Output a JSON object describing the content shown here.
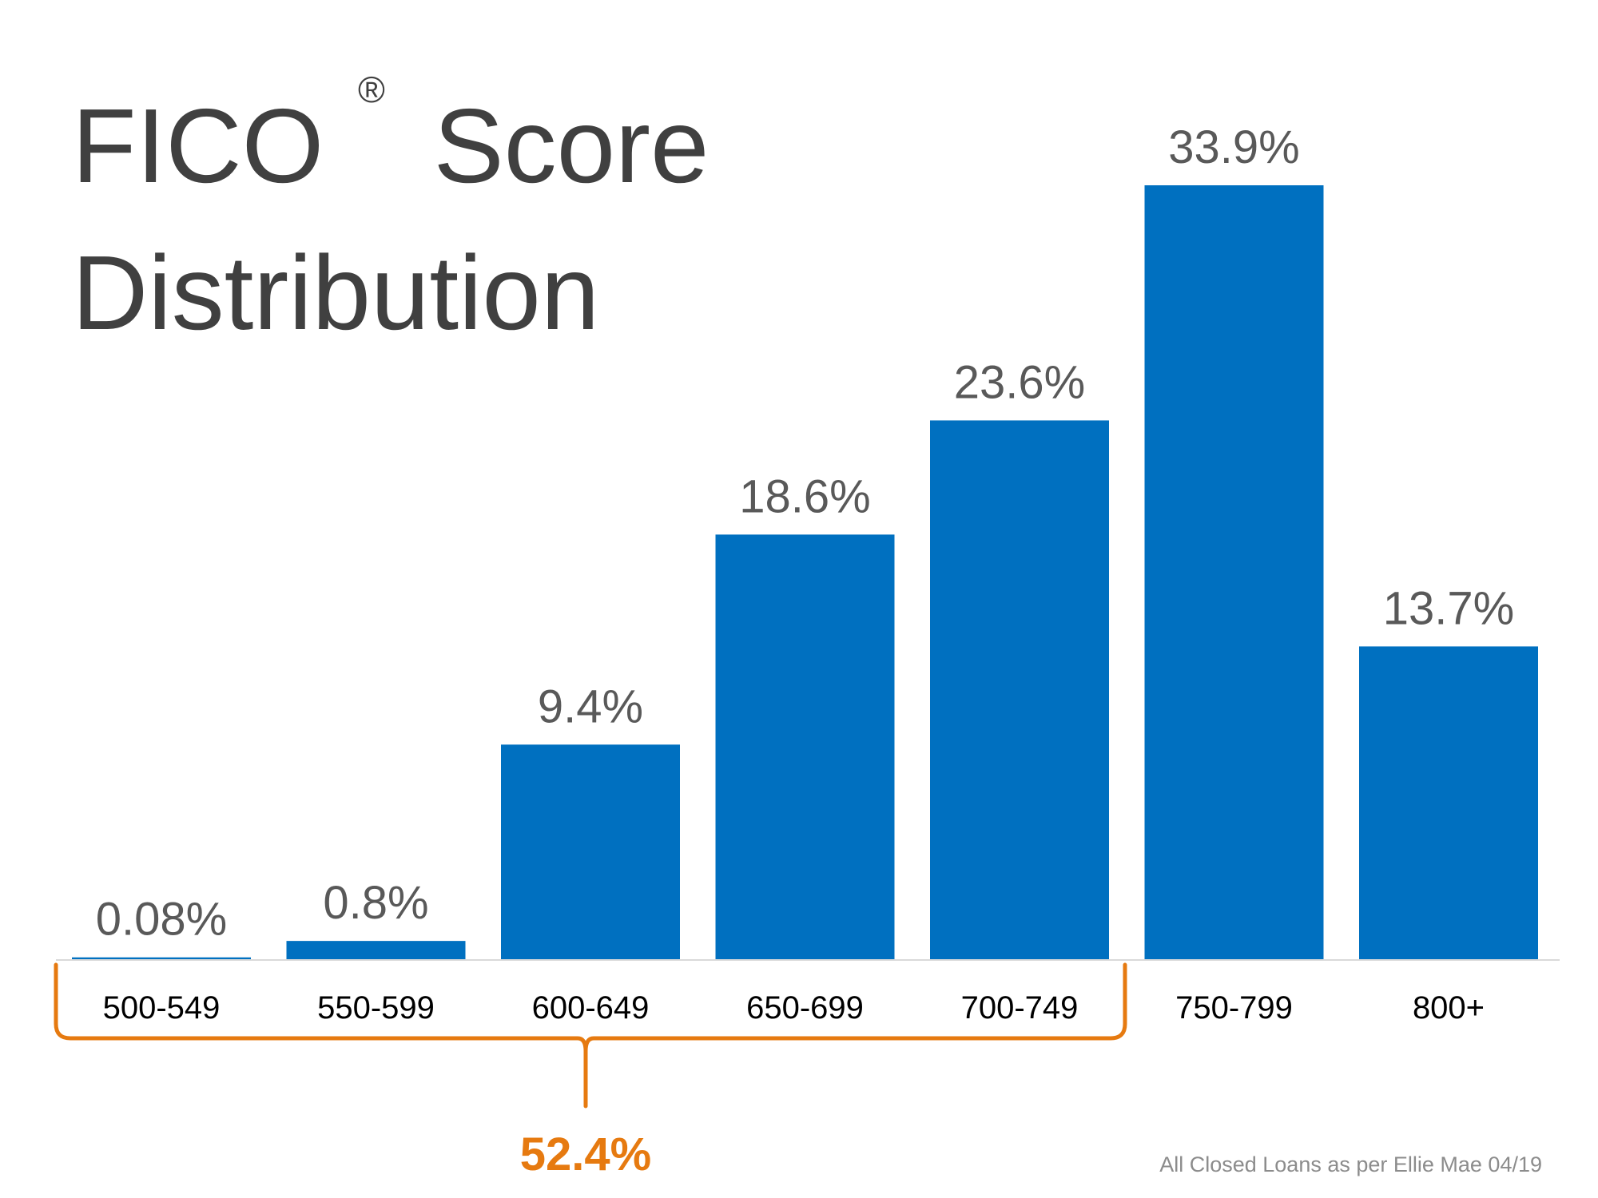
{
  "title": {
    "line1": "FICO",
    "sup": "®",
    "line1_rest": "Score",
    "line2": "Distribution"
  },
  "chart_data": {
    "type": "bar",
    "categories": [
      "500-549",
      "550-599",
      "600-649",
      "650-699",
      "700-749",
      "750-799",
      "800+"
    ],
    "values": [
      0.08,
      0.8,
      9.4,
      18.6,
      23.6,
      33.9,
      13.7
    ],
    "value_labels": [
      "0.08%",
      "0.8%",
      "9.4%",
      "18.6%",
      "23.6%",
      "33.9%",
      "13.7%"
    ],
    "ylim": [
      0,
      33.9
    ],
    "grid": false,
    "legend": "none"
  },
  "bracket": {
    "from_category": "500-549",
    "to_category": "700-749",
    "total_label": "52.4%"
  },
  "source_note": "All Closed Loans as per Ellie Mae 04/19",
  "colors": {
    "bar": "#0070C0",
    "bracket": "#E67A10",
    "title": "#404040",
    "value_label": "#595959",
    "source": "#8c8c8c",
    "axis": "#d9d9d9"
  }
}
